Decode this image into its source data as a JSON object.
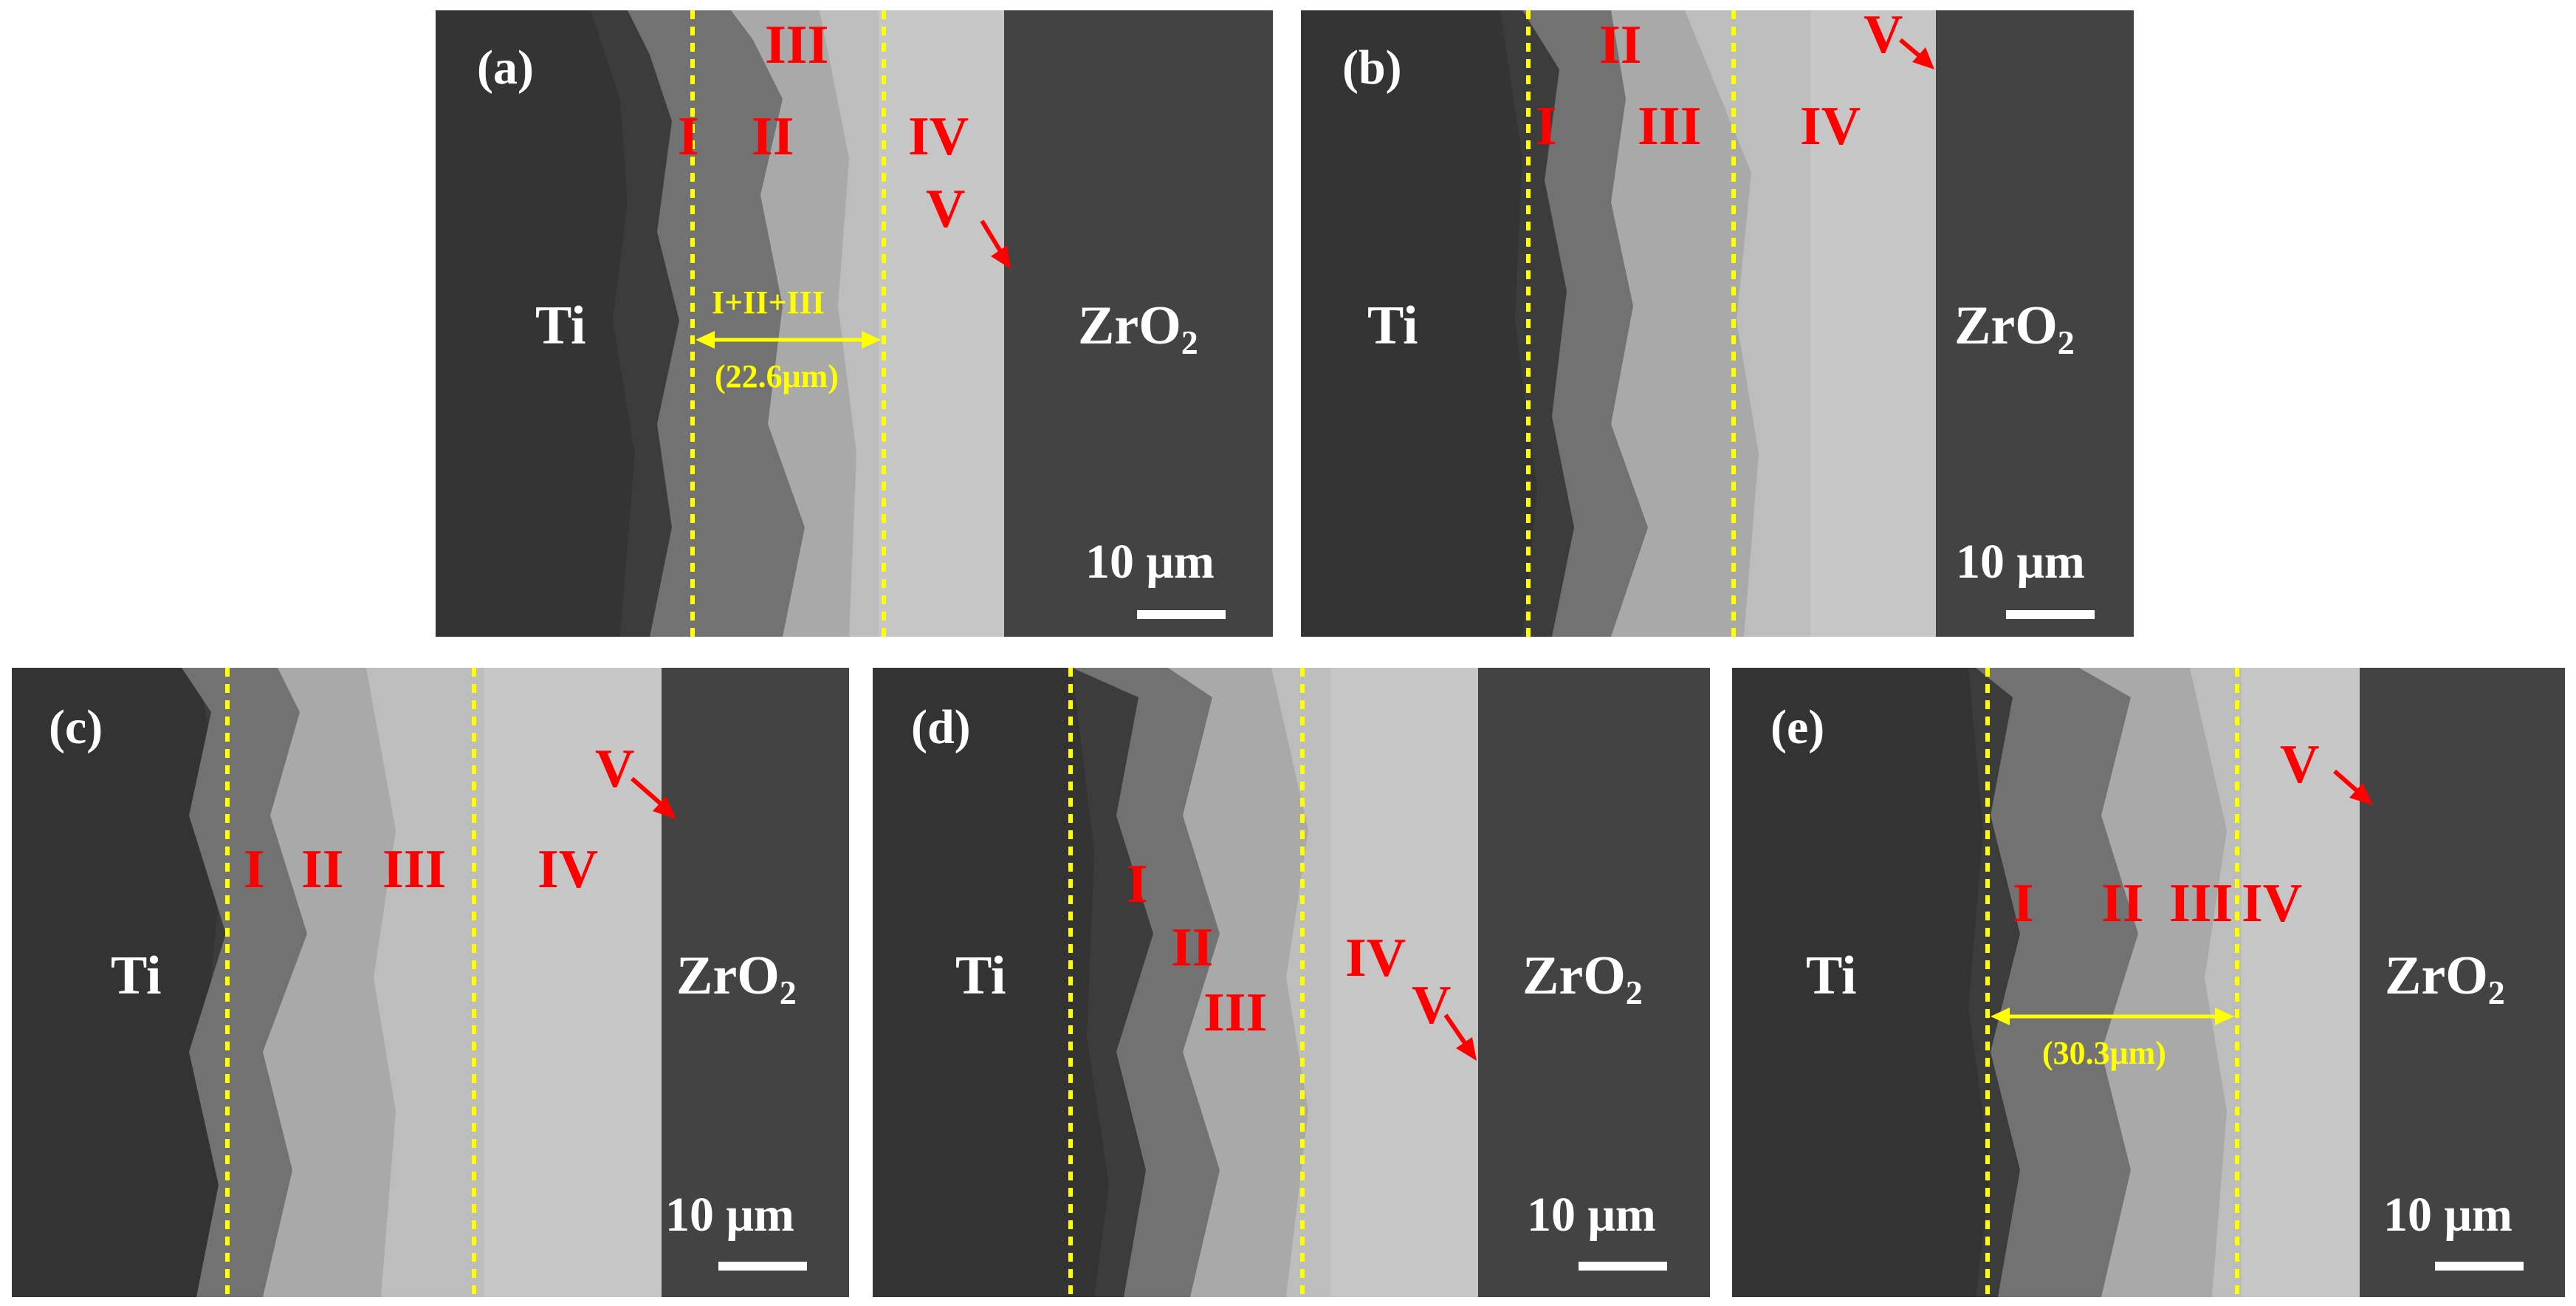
{
  "colors": {
    "ti": "#3c3c3c",
    "zro2": "#434343",
    "zone1": "#727272",
    "zone2": "#a9a9a9",
    "zone3": "#bdbdbd",
    "zone4": "#c6c6c6",
    "label_red": "#ff0000",
    "guide_yellow": "#ffff00",
    "text_white": "#ffffff"
  },
  "panels": {
    "a": {
      "label": "(a)",
      "ti": "Ti",
      "zro2_main": "ZrO",
      "zro2_sub": "2",
      "zones": {
        "z1": "I",
        "z2": "II",
        "z3": "III",
        "z4": "IV",
        "z5": "V"
      },
      "measure_label": "I+II+III",
      "measure_value": "(22.6μm)",
      "scale": "10 μm"
    },
    "b": {
      "label": "(b)",
      "ti": "Ti",
      "zro2_main": "ZrO",
      "zro2_sub": "2",
      "zones": {
        "z1": "I",
        "z2": "II",
        "z3": "III",
        "z4": "IV",
        "z5": "V"
      },
      "scale": "10 μm"
    },
    "c": {
      "label": "(c)",
      "ti": "Ti",
      "zro2_main": "ZrO",
      "zro2_sub": "2",
      "zones": {
        "z1": "I",
        "z2": "II",
        "z3": "III",
        "z4": "IV",
        "z5": "V"
      },
      "scale": "10 μm"
    },
    "d": {
      "label": "(d)",
      "ti": "Ti",
      "zro2_main": "ZrO",
      "zro2_sub": "2",
      "zones": {
        "z1": "I",
        "z2": "II",
        "z3": "III",
        "z4": "IV",
        "z5": "V"
      },
      "scale": "10 μm"
    },
    "e": {
      "label": "(e)",
      "ti": "Ti",
      "zro2_main": "ZrO",
      "zro2_sub": "2",
      "zones": {
        "z1": "I",
        "z2": "II",
        "z3": "III",
        "z4": "IV",
        "z5": "V"
      },
      "measure_value": "(30.3μm)",
      "scale": "10 μm"
    }
  }
}
